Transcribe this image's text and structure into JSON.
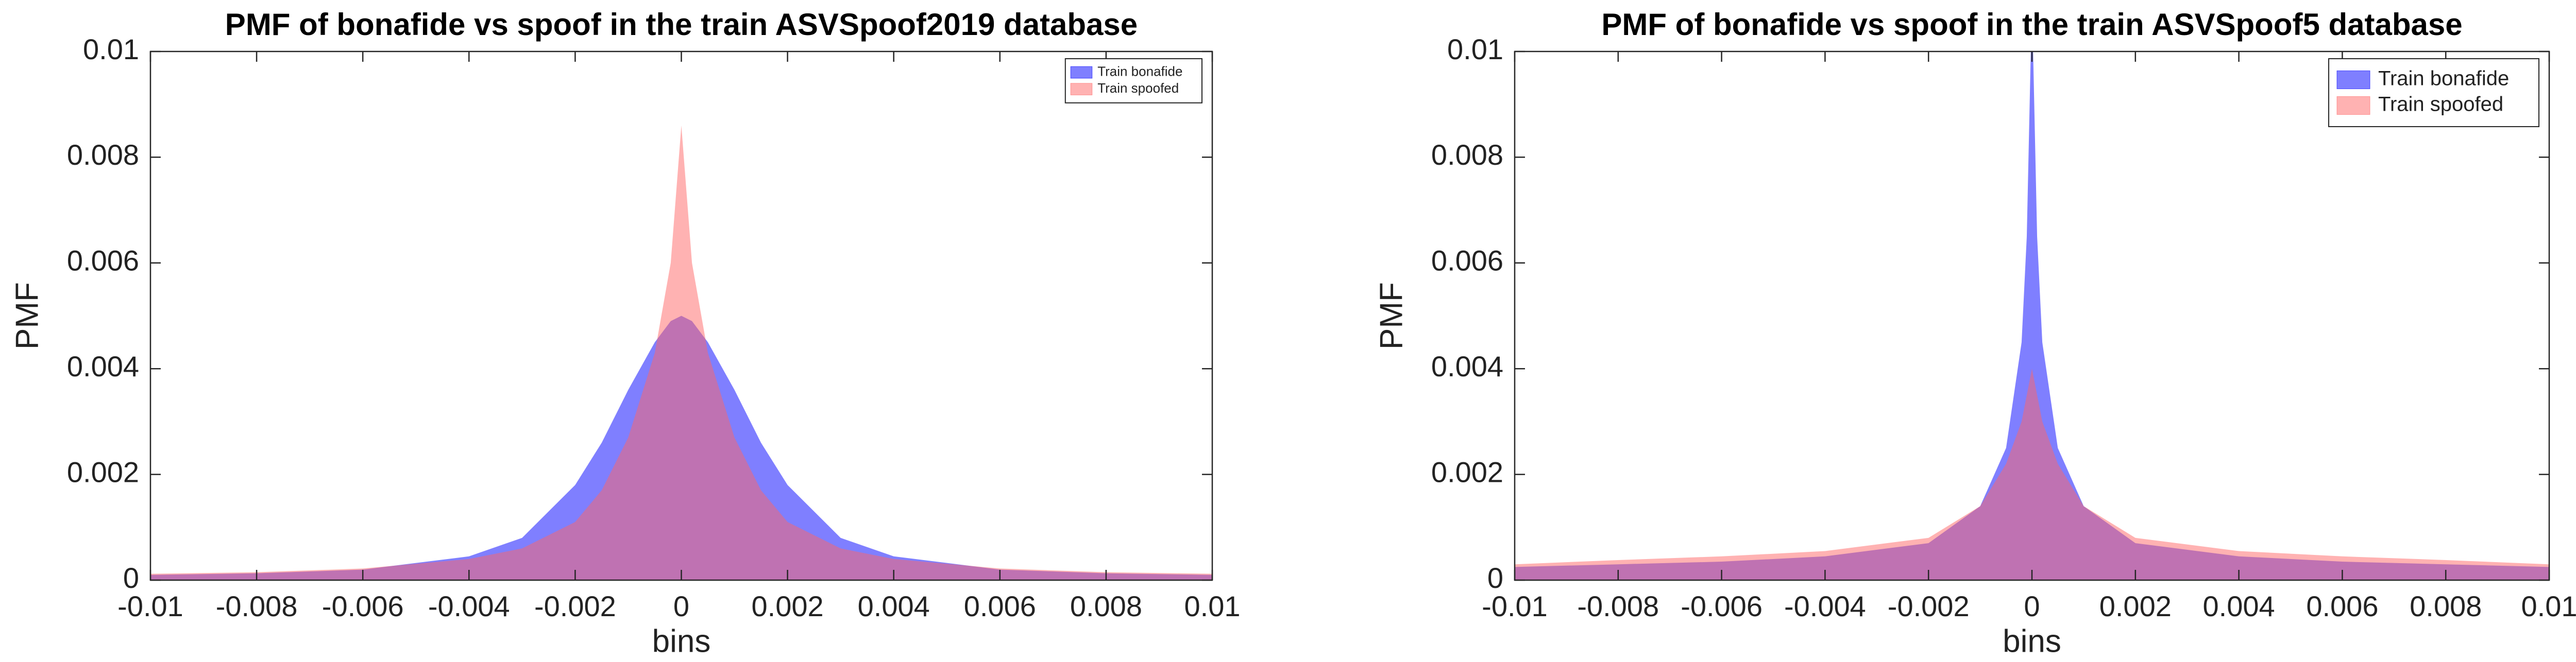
{
  "chart_data": [
    {
      "type": "area",
      "title": "PMF of bonafide vs spoof in the train ASVSpoof2019 database",
      "xlabel": "bins",
      "ylabel": "PMF",
      "x": [
        -0.01,
        -0.008,
        -0.006,
        -0.004,
        -0.003,
        -0.002,
        -0.0015,
        -0.001,
        -0.0005,
        -0.0002,
        0,
        0.0002,
        0.0005,
        0.001,
        0.0015,
        0.002,
        0.003,
        0.004,
        0.006,
        0.008,
        0.01
      ],
      "series": [
        {
          "name": "Train bonafide",
          "color": "#0000ff",
          "values": [
            0.0001,
            0.00013,
            0.0002,
            0.00045,
            0.0008,
            0.0018,
            0.0026,
            0.0036,
            0.0045,
            0.0049,
            0.005,
            0.0049,
            0.0045,
            0.0036,
            0.0026,
            0.0018,
            0.0008,
            0.00045,
            0.0002,
            0.00013,
            0.0001
          ]
        },
        {
          "name": "Train spoofed",
          "color": "#ff6666",
          "values": [
            0.00012,
            0.00015,
            0.00022,
            0.0004,
            0.0006,
            0.0011,
            0.0017,
            0.0027,
            0.0043,
            0.006,
            0.0086,
            0.006,
            0.0043,
            0.0027,
            0.0017,
            0.0011,
            0.0006,
            0.0004,
            0.00022,
            0.00015,
            0.00012
          ]
        }
      ],
      "xlim": [
        -0.01,
        0.01
      ],
      "ylim": [
        0,
        0.01
      ],
      "xticks": [
        -0.01,
        -0.008,
        -0.006,
        -0.004,
        -0.002,
        0,
        0.002,
        0.004,
        0.006,
        0.008,
        0.01
      ],
      "yticks": [
        0,
        0.002,
        0.004,
        0.006,
        0.008,
        0.01
      ],
      "legend": "northeast"
    },
    {
      "type": "area",
      "title": "PMF of bonafide vs spoof in the train ASVSpoof5 database",
      "xlabel": "bins",
      "ylabel": "PMF",
      "x": [
        -0.01,
        -0.008,
        -0.006,
        -0.004,
        -0.002,
        -0.001,
        -0.0005,
        -0.0002,
        -0.0001,
        0,
        0.0001,
        0.0002,
        0.0005,
        0.001,
        0.002,
        0.004,
        0.006,
        0.008,
        0.01
      ],
      "series": [
        {
          "name": "Train bonafide",
          "color": "#0000ff",
          "values": [
            0.00025,
            0.0003,
            0.00035,
            0.00045,
            0.0007,
            0.0014,
            0.0025,
            0.0045,
            0.0065,
            0.011,
            0.0065,
            0.0045,
            0.0025,
            0.0014,
            0.0007,
            0.00045,
            0.00035,
            0.0003,
            0.00025
          ]
        },
        {
          "name": "Train spoofed",
          "color": "#ff6666",
          "values": [
            0.0003,
            0.00038,
            0.00045,
            0.00055,
            0.0008,
            0.0014,
            0.0022,
            0.003,
            0.0035,
            0.004,
            0.0035,
            0.003,
            0.0022,
            0.0014,
            0.0008,
            0.00055,
            0.00045,
            0.00038,
            0.0003
          ]
        }
      ],
      "xlim": [
        -0.01,
        0.01
      ],
      "ylim": [
        0,
        0.01
      ],
      "xticks": [
        -0.01,
        -0.008,
        -0.006,
        -0.004,
        -0.002,
        0,
        0.002,
        0.004,
        0.006,
        0.008,
        0.01
      ],
      "yticks": [
        0,
        0.002,
        0.004,
        0.006,
        0.008,
        0.01
      ],
      "legend": "northeast"
    }
  ]
}
